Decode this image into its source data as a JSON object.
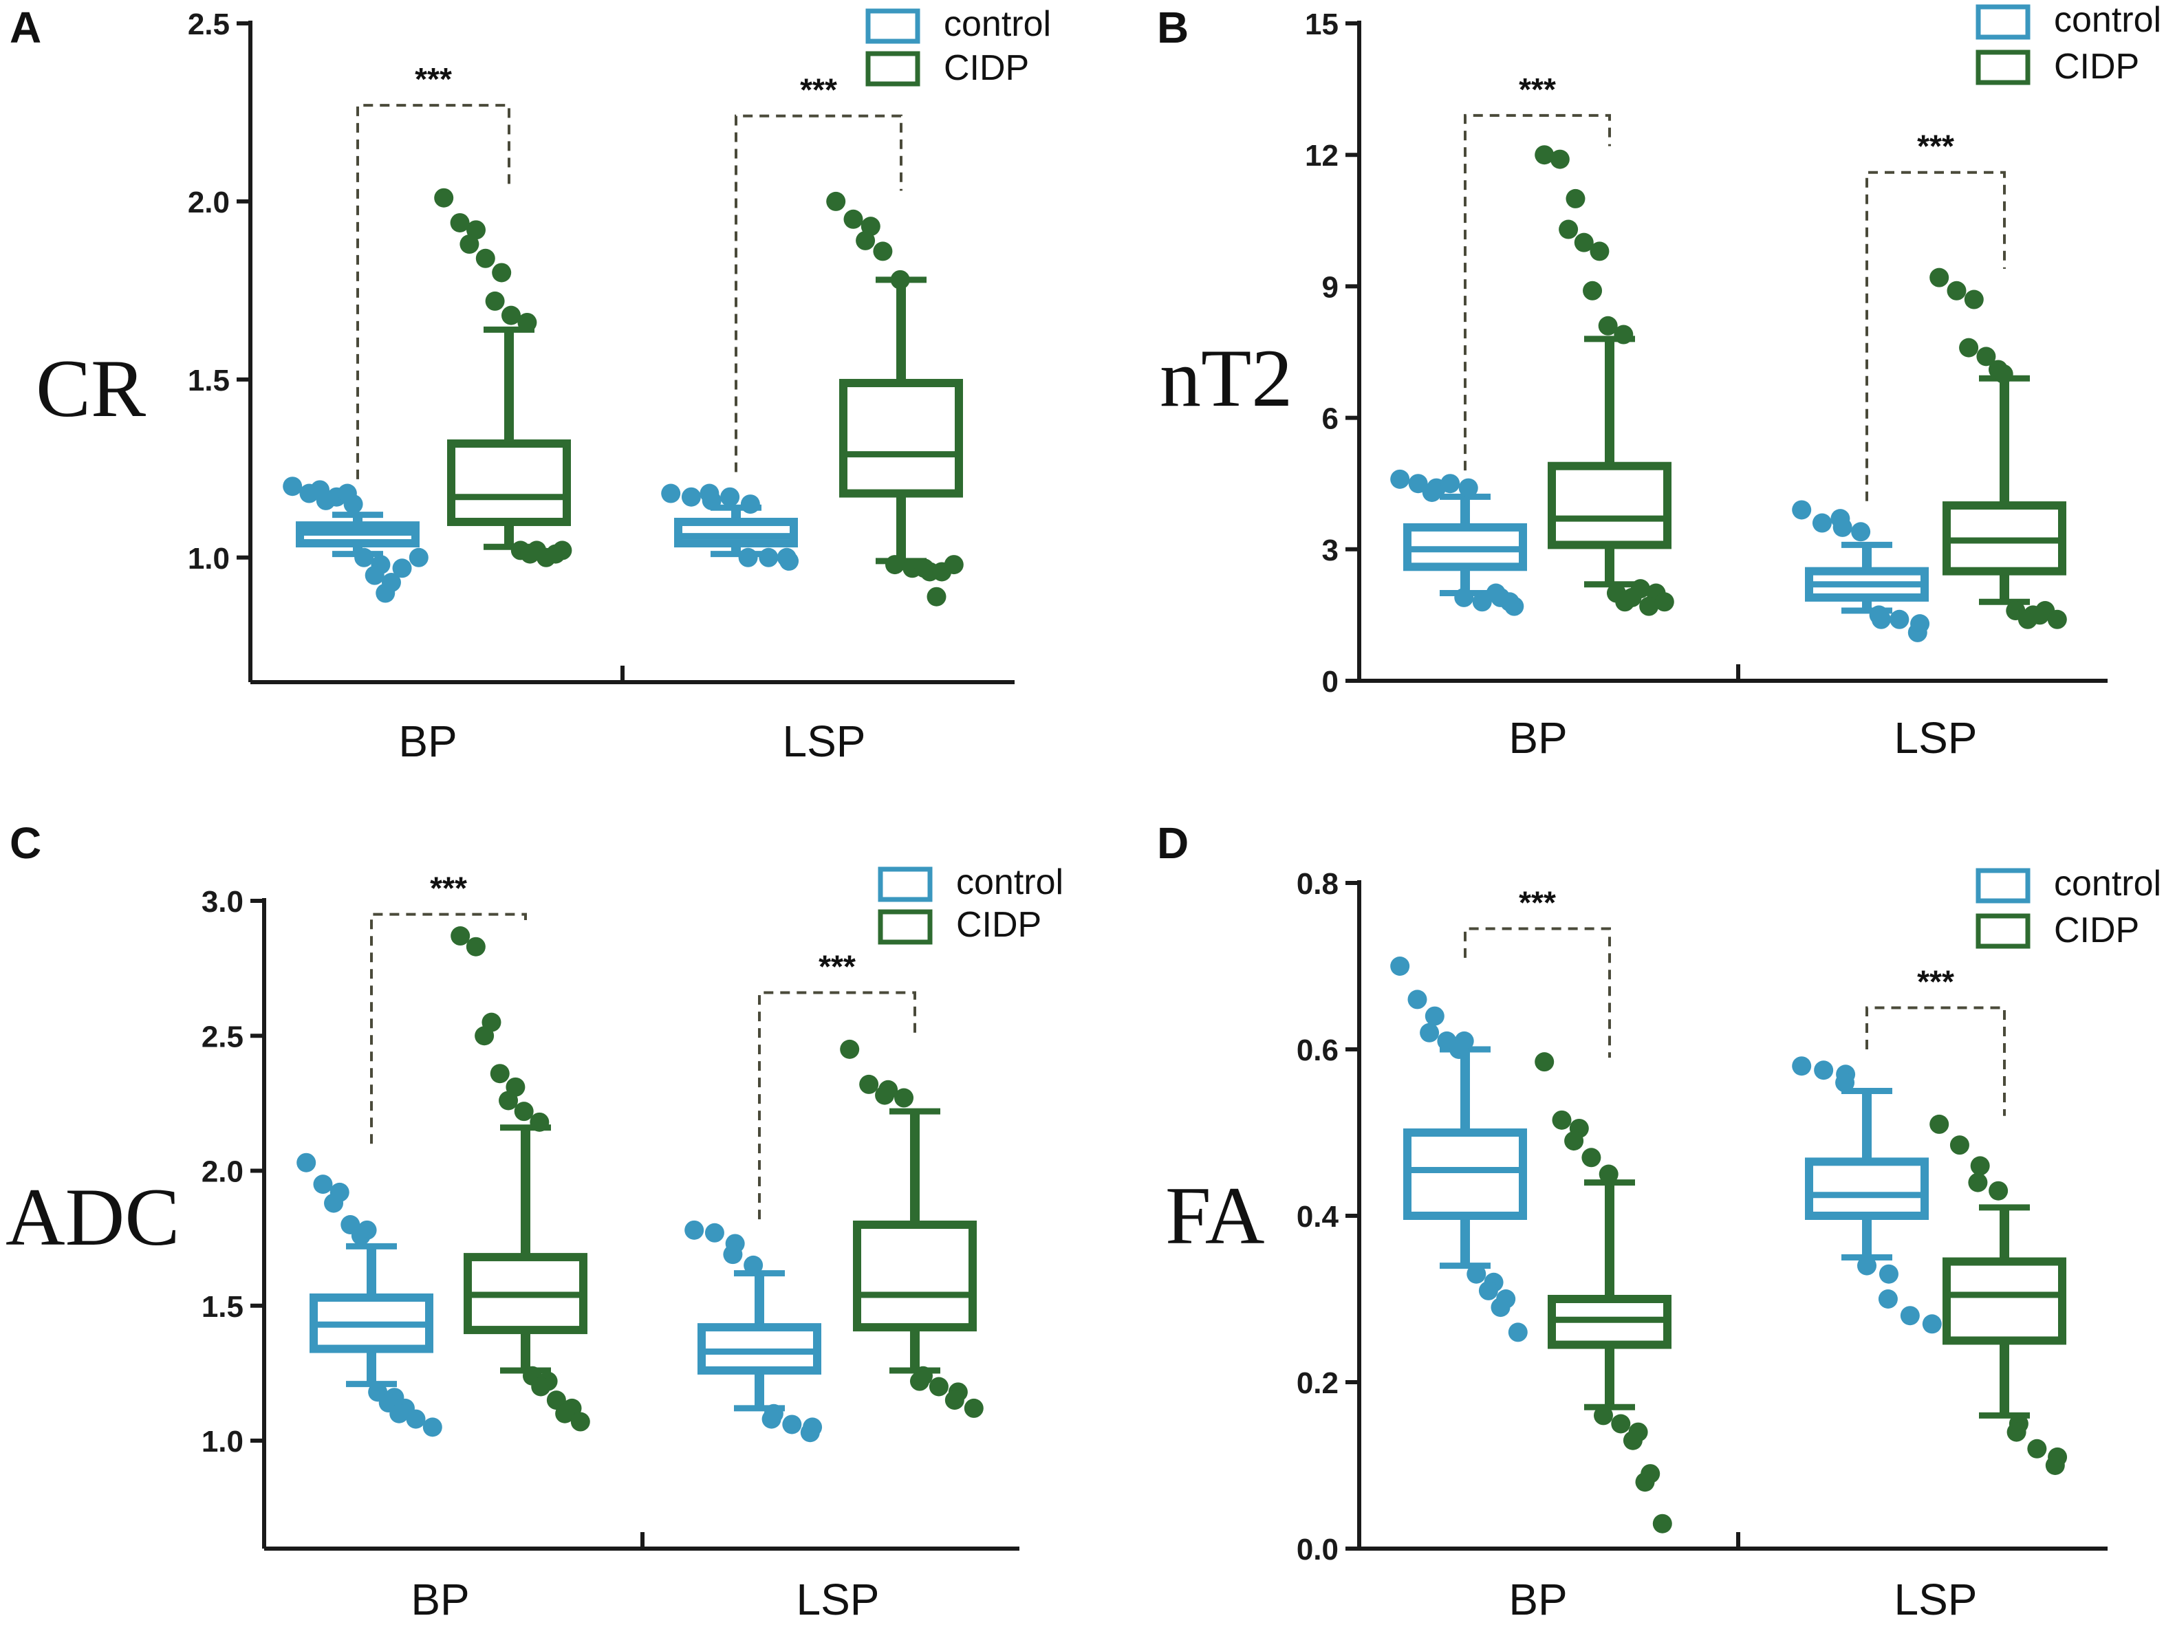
{
  "colors": {
    "control": "#3a97bf",
    "cidp": "#2e6b30"
  },
  "chart_data": [
    {
      "type": "box",
      "panel": "A",
      "ylabel": "CR",
      "ylim": [
        0.65,
        2.5
      ],
      "yticks": [
        1.0,
        1.5,
        2.0,
        2.5
      ],
      "ytick_labels": [
        "1.0",
        "1.5",
        "2.0",
        "2.5"
      ],
      "categories": [
        "BP",
        "LSP"
      ],
      "legend": [
        "control",
        "CIDP"
      ],
      "legend_position": "top-right",
      "significance": [
        "***",
        "***"
      ],
      "groups": [
        {
          "category": "BP",
          "series": "control",
          "min": 1.01,
          "q1": 1.04,
          "median": 1.07,
          "q3": 1.09,
          "max": 1.12,
          "outliers": [
            1.2,
            1.18,
            1.16,
            1.19,
            1.17,
            1.15,
            1.18,
            1.0,
            0.98,
            0.95,
            0.93,
            0.9,
            0.97,
            1.0
          ]
        },
        {
          "category": "BP",
          "series": "CIDP",
          "min": 1.03,
          "q1": 1.1,
          "median": 1.17,
          "q3": 1.32,
          "max": 1.64,
          "outliers": [
            2.01,
            1.94,
            1.92,
            1.88,
            1.84,
            1.8,
            1.72,
            1.68,
            1.66,
            1.02,
            1.02,
            1.01,
            1.0,
            1.02,
            1.01
          ]
        },
        {
          "category": "LSP",
          "series": "control",
          "min": 1.01,
          "q1": 1.04,
          "median": 1.06,
          "q3": 1.1,
          "max": 1.14,
          "outliers": [
            1.18,
            1.17,
            1.16,
            1.18,
            1.17,
            1.15,
            1.0,
            1.0,
            0.99,
            1.0
          ]
        },
        {
          "category": "LSP",
          "series": "CIDP",
          "min": 0.99,
          "q1": 1.18,
          "median": 1.29,
          "q3": 1.49,
          "max": 1.78,
          "outliers": [
            2.0,
            1.95,
            1.93,
            1.89,
            1.86,
            1.78,
            0.98,
            0.97,
            0.96,
            0.97,
            0.96,
            0.89,
            0.98
          ]
        }
      ],
      "brackets": [
        {
          "from": 1.22,
          "top": 2.27,
          "to": 2.04
        },
        {
          "from": 1.24,
          "top": 2.24,
          "to": 2.03
        }
      ]
    },
    {
      "type": "box",
      "panel": "B",
      "ylabel": "nT2",
      "ylim": [
        0,
        15
      ],
      "yticks": [
        0,
        3,
        6,
        9,
        12,
        15
      ],
      "ytick_labels": [
        "0",
        "3",
        "6",
        "9",
        "12",
        "15"
      ],
      "categories": [
        "BP",
        "LSP"
      ],
      "legend": [
        "control",
        "CIDP"
      ],
      "legend_position": "top-right",
      "significance": [
        "***",
        "***"
      ],
      "groups": [
        {
          "category": "BP",
          "series": "control",
          "min": 2.0,
          "q1": 2.6,
          "median": 3.0,
          "q3": 3.5,
          "max": 4.2,
          "outliers": [
            4.6,
            4.5,
            4.4,
            4.3,
            4.5,
            4.4,
            1.9,
            1.8,
            1.9,
            2.0,
            1.7,
            1.8
          ]
        },
        {
          "category": "BP",
          "series": "CIDP",
          "min": 2.2,
          "q1": 3.1,
          "median": 3.7,
          "q3": 4.9,
          "max": 7.8,
          "outliers": [
            12.0,
            11.9,
            11.0,
            10.3,
            10.0,
            9.8,
            8.9,
            8.1,
            7.9,
            2.0,
            1.9,
            1.8,
            2.1,
            2.0,
            1.7,
            1.8
          ]
        },
        {
          "category": "LSP",
          "series": "control",
          "min": 1.6,
          "q1": 1.9,
          "median": 2.2,
          "q3": 2.5,
          "max": 3.1,
          "outliers": [
            3.9,
            3.6,
            3.5,
            3.7,
            3.4,
            1.4,
            1.5,
            1.4,
            1.3,
            1.1
          ]
        },
        {
          "category": "LSP",
          "series": "CIDP",
          "min": 1.8,
          "q1": 2.5,
          "median": 3.2,
          "q3": 4.0,
          "max": 6.9,
          "outliers": [
            9.2,
            8.9,
            8.7,
            7.6,
            7.4,
            7.0,
            7.1,
            1.6,
            1.5,
            1.4,
            1.6,
            1.5,
            1.4
          ]
        }
      ],
      "brackets": [
        {
          "from": 4.8,
          "top": 12.9,
          "to": 12.2
        },
        {
          "from": 4.1,
          "top": 11.6,
          "to": 9.4
        }
      ]
    },
    {
      "type": "box",
      "panel": "C",
      "ylabel": "ADC",
      "ylim": [
        0.6,
        3.0
      ],
      "yticks": [
        1.0,
        1.5,
        2.0,
        2.5,
        3.0
      ],
      "ytick_labels": [
        "1.0",
        "1.5",
        "2.0",
        "2.5",
        "3.0"
      ],
      "categories": [
        "BP",
        "LSP"
      ],
      "legend": [
        "control",
        "CIDP"
      ],
      "legend_position": "top-right",
      "significance": [
        "***",
        "***"
      ],
      "groups": [
        {
          "category": "BP",
          "series": "control",
          "min": 1.21,
          "q1": 1.34,
          "median": 1.43,
          "q3": 1.53,
          "max": 1.72,
          "outliers": [
            2.03,
            1.95,
            1.92,
            1.88,
            1.8,
            1.78,
            1.76,
            1.18,
            1.16,
            1.14,
            1.12,
            1.1,
            1.08,
            1.05
          ]
        },
        {
          "category": "BP",
          "series": "CIDP",
          "min": 1.26,
          "q1": 1.41,
          "median": 1.54,
          "q3": 1.68,
          "max": 2.16,
          "outliers": [
            2.87,
            2.83,
            2.55,
            2.5,
            2.36,
            2.31,
            2.26,
            2.22,
            2.18,
            1.24,
            1.22,
            1.2,
            1.15,
            1.12,
            1.1,
            1.07
          ]
        },
        {
          "category": "LSP",
          "series": "control",
          "min": 1.12,
          "q1": 1.26,
          "median": 1.33,
          "q3": 1.42,
          "max": 1.62,
          "outliers": [
            1.78,
            1.77,
            1.73,
            1.69,
            1.65,
            1.1,
            1.08,
            1.06,
            1.05,
            1.03
          ]
        },
        {
          "category": "LSP",
          "series": "CIDP",
          "min": 1.26,
          "q1": 1.42,
          "median": 1.54,
          "q3": 1.8,
          "max": 2.22,
          "outliers": [
            2.45,
            2.32,
            2.3,
            2.28,
            2.27,
            1.24,
            1.22,
            1.2,
            1.18,
            1.15,
            1.12
          ]
        }
      ],
      "brackets": [
        {
          "from": 2.1,
          "top": 2.95,
          "to": 2.92
        },
        {
          "from": 1.82,
          "top": 2.66,
          "to": 2.5
        }
      ]
    },
    {
      "type": "box",
      "panel": "D",
      "ylabel": "FA",
      "ylim": [
        0.0,
        0.8
      ],
      "yticks": [
        0.0,
        0.2,
        0.4,
        0.6,
        0.8
      ],
      "ytick_labels": [
        "0.0",
        "0.2",
        "0.4",
        "0.6",
        "0.8"
      ],
      "categories": [
        "BP",
        "LSP"
      ],
      "legend": [
        "control",
        "CIDP"
      ],
      "legend_position": "top-right",
      "significance": [
        "***",
        "***"
      ],
      "groups": [
        {
          "category": "BP",
          "series": "control",
          "min": 0.34,
          "q1": 0.4,
          "median": 0.455,
          "q3": 0.5,
          "max": 0.6,
          "outliers": [
            0.7,
            0.66,
            0.64,
            0.62,
            0.61,
            0.61,
            0.6,
            0.33,
            0.32,
            0.31,
            0.3,
            0.29,
            0.26
          ]
        },
        {
          "category": "BP",
          "series": "CIDP",
          "min": 0.17,
          "q1": 0.245,
          "median": 0.275,
          "q3": 0.3,
          "max": 0.44,
          "outliers": [
            0.585,
            0.515,
            0.505,
            0.49,
            0.47,
            0.45,
            0.16,
            0.15,
            0.14,
            0.13,
            0.09,
            0.08,
            0.03
          ]
        },
        {
          "category": "LSP",
          "series": "control",
          "min": 0.35,
          "q1": 0.4,
          "median": 0.425,
          "q3": 0.465,
          "max": 0.55,
          "outliers": [
            0.58,
            0.575,
            0.57,
            0.56,
            0.34,
            0.33,
            0.3,
            0.28,
            0.27
          ]
        },
        {
          "category": "LSP",
          "series": "CIDP",
          "min": 0.16,
          "q1": 0.25,
          "median": 0.305,
          "q3": 0.345,
          "max": 0.41,
          "outliers": [
            0.51,
            0.485,
            0.46,
            0.44,
            0.43,
            0.15,
            0.14,
            0.12,
            0.11,
            0.1
          ]
        }
      ],
      "brackets": [
        {
          "from": 0.71,
          "top": 0.745,
          "to": 0.59
        },
        {
          "from": 0.6,
          "top": 0.65,
          "to": 0.52
        }
      ]
    }
  ]
}
